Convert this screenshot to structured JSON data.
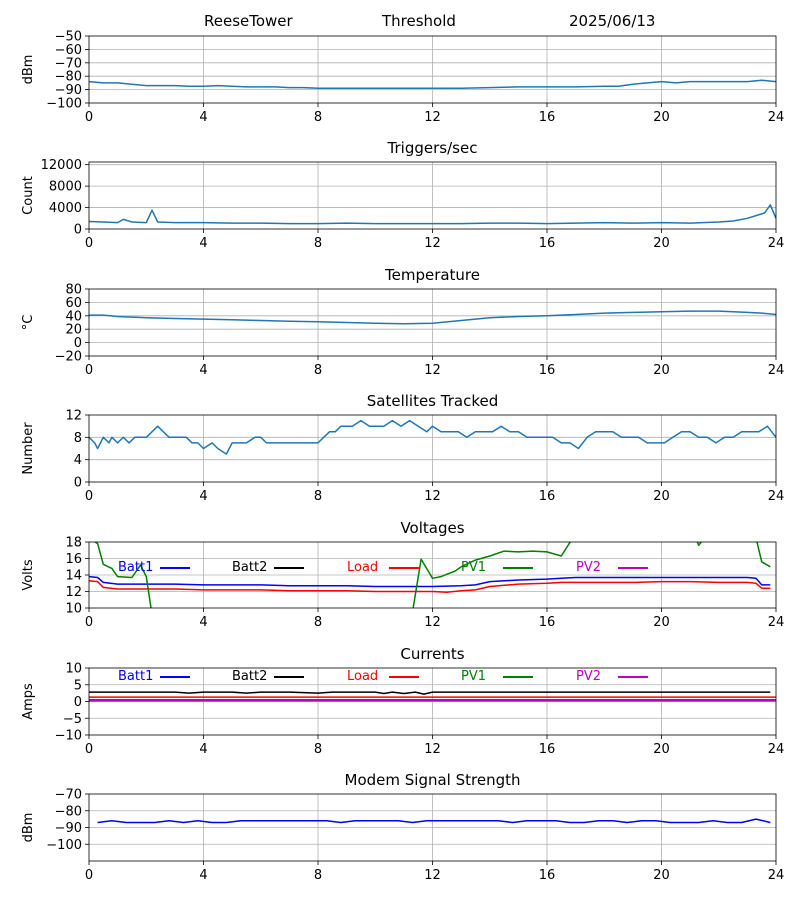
{
  "header": {
    "station": "ReeseTower",
    "mode": "Threshold",
    "date": "2025/06/13"
  },
  "legend_labels": {
    "batt1": "Batt1",
    "batt2": "Batt2",
    "load": "Load",
    "pv1": "PV1",
    "pv2": "PV2"
  },
  "chart_data": [
    {
      "type": "line",
      "title": "",
      "ylabel": "dBm",
      "xlim": [
        0,
        24
      ],
      "ylim": [
        -100,
        -50
      ],
      "x_ticks": [
        "0",
        "4",
        "8",
        "12",
        "16",
        "20",
        "24"
      ],
      "y_ticks": [
        "−100",
        "−90",
        "−80",
        "−70",
        "−60",
        "−50"
      ],
      "y_tick_values": [
        -100,
        -90,
        -80,
        -70,
        -60,
        -50
      ],
      "grid": true,
      "series": [
        {
          "color": "#1f77b4",
          "x": [
            0,
            0.5,
            1,
            1.5,
            2,
            2.5,
            3,
            3.5,
            4,
            4.5,
            5,
            5.5,
            6,
            6.5,
            7,
            7.5,
            8,
            9,
            10,
            11,
            12,
            13,
            14,
            15,
            16,
            17,
            18,
            18.5,
            19,
            19.5,
            20,
            20.5,
            21,
            21.5,
            22,
            22.5,
            23,
            23.5,
            24
          ],
          "y": [
            -84,
            -85,
            -85,
            -86,
            -87,
            -87,
            -87,
            -87.5,
            -87.5,
            -87,
            -87.5,
            -88,
            -88,
            -88,
            -88.5,
            -88.5,
            -89,
            -89,
            -89,
            -89,
            -89,
            -89,
            -88.5,
            -88,
            -88,
            -88,
            -87.5,
            -87.5,
            -86,
            -85,
            -84,
            -85,
            -84,
            -84,
            -84,
            -84,
            -84,
            -83,
            -84
          ]
        }
      ]
    },
    {
      "type": "line",
      "title": "Triggers/sec",
      "ylabel": "Count",
      "xlim": [
        0,
        24
      ],
      "ylim": [
        0,
        12500
      ],
      "x_ticks": [
        "0",
        "4",
        "8",
        "12",
        "16",
        "20",
        "24"
      ],
      "y_ticks": [
        "0",
        "4000",
        "8000",
        "12000"
      ],
      "y_tick_values": [
        0,
        4000,
        8000,
        12000
      ],
      "grid": true,
      "series": [
        {
          "color": "#1f77b4",
          "x": [
            0,
            0.5,
            1,
            1.2,
            1.5,
            2,
            2.2,
            2.4,
            3,
            4,
            5,
            6,
            7,
            8,
            9,
            10,
            11,
            12,
            13,
            14,
            15,
            16,
            17,
            18,
            19,
            20,
            21,
            22,
            22.5,
            23,
            23.3,
            23.6,
            23.8,
            24
          ],
          "y": [
            1400,
            1300,
            1200,
            1800,
            1300,
            1200,
            3500,
            1300,
            1200,
            1200,
            1100,
            1100,
            1000,
            1000,
            1100,
            1000,
            1000,
            1000,
            1000,
            1100,
            1100,
            1000,
            1100,
            1200,
            1100,
            1200,
            1100,
            1300,
            1500,
            2000,
            2500,
            3000,
            4500,
            2000
          ]
        }
      ]
    },
    {
      "type": "line",
      "title": "Temperature",
      "ylabel": "°C",
      "xlim": [
        0,
        24
      ],
      "ylim": [
        -20,
        80
      ],
      "x_ticks": [
        "0",
        "4",
        "8",
        "12",
        "16",
        "20",
        "24"
      ],
      "y_ticks": [
        "−20",
        "0",
        "20",
        "40",
        "60",
        "80"
      ],
      "y_tick_values": [
        -20,
        0,
        20,
        40,
        60,
        80
      ],
      "grid": true,
      "series": [
        {
          "color": "#1f77b4",
          "x": [
            0,
            0.5,
            1,
            2,
            3,
            4,
            5,
            6,
            7,
            8,
            9,
            10,
            11,
            12,
            13,
            14,
            15,
            16,
            17,
            18,
            19,
            20,
            21,
            22,
            23,
            23.5,
            24
          ],
          "y": [
            41,
            41,
            39,
            37,
            36,
            35,
            34,
            33,
            32,
            31,
            30,
            29,
            28,
            29,
            33,
            37,
            39,
            40,
            42,
            44,
            45,
            46,
            47,
            47,
            45,
            44,
            42
          ]
        }
      ]
    },
    {
      "type": "line",
      "title": "Satellites Tracked",
      "ylabel": "Number",
      "xlim": [
        0,
        24
      ],
      "ylim": [
        0,
        12
      ],
      "x_ticks": [
        "0",
        "4",
        "8",
        "12",
        "16",
        "20",
        "24"
      ],
      "y_ticks": [
        "0",
        "4",
        "8",
        "12"
      ],
      "y_tick_values": [
        0,
        4,
        8,
        12
      ],
      "grid": true,
      "series": [
        {
          "color": "#1f77b4",
          "x": [
            0,
            0.2,
            0.3,
            0.4,
            0.5,
            0.7,
            0.8,
            1.0,
            1.2,
            1.4,
            1.6,
            1.8,
            2.0,
            2.2,
            2.4,
            2.6,
            2.8,
            3.0,
            3.2,
            3.4,
            3.6,
            3.8,
            4.0,
            4.3,
            4.5,
            4.8,
            5.0,
            5.3,
            5.5,
            5.8,
            6.0,
            6.2,
            6.5,
            6.8,
            7.0,
            7.3,
            7.5,
            7.8,
            8.0,
            8.2,
            8.4,
            8.6,
            8.8,
            9.0,
            9.2,
            9.5,
            9.8,
            10.0,
            10.3,
            10.6,
            10.9,
            11.2,
            11.5,
            11.8,
            12.0,
            12.3,
            12.6,
            12.9,
            13.2,
            13.5,
            13.8,
            14.1,
            14.4,
            14.7,
            15.0,
            15.3,
            15.6,
            15.9,
            16.2,
            16.5,
            16.8,
            17.1,
            17.4,
            17.7,
            18.0,
            18.3,
            18.6,
            18.9,
            19.2,
            19.5,
            19.8,
            20.1,
            20.4,
            20.7,
            21.0,
            21.3,
            21.6,
            21.9,
            22.2,
            22.5,
            22.8,
            23.1,
            23.4,
            23.7,
            24.0
          ],
          "y": [
            8,
            7,
            6,
            7,
            8,
            7,
            8,
            7,
            8,
            7,
            8,
            8,
            8,
            9,
            10,
            9,
            8,
            8,
            8,
            8,
            7,
            7,
            6,
            7,
            6,
            5,
            7,
            7,
            7,
            8,
            8,
            7,
            7,
            7,
            7,
            7,
            7,
            7,
            7,
            8,
            9,
            9,
            10,
            10,
            10,
            11,
            10,
            10,
            10,
            11,
            10,
            11,
            10,
            9,
            10,
            9,
            9,
            9,
            8,
            9,
            9,
            9,
            10,
            9,
            9,
            8,
            8,
            8,
            8,
            7,
            7,
            6,
            8,
            9,
            9,
            9,
            8,
            8,
            8,
            7,
            7,
            7,
            8,
            9,
            9,
            8,
            8,
            7,
            8,
            8,
            9,
            9,
            9,
            10,
            8
          ]
        }
      ]
    },
    {
      "type": "line",
      "title": "Voltages",
      "ylabel": "Volts",
      "xlim": [
        0,
        24
      ],
      "ylim": [
        10,
        18
      ],
      "x_ticks": [
        "0",
        "4",
        "8",
        "12",
        "16",
        "20",
        "24"
      ],
      "y_ticks": [
        "10",
        "12",
        "14",
        "16",
        "18"
      ],
      "y_tick_values": [
        10,
        12,
        14,
        16,
        18
      ],
      "grid": true,
      "legend": "top-left, inline",
      "series": [
        {
          "name": "Batt1",
          "color": "#0000ff",
          "x": [
            0,
            0.3,
            0.5,
            1,
            2,
            3,
            4,
            5,
            6,
            7,
            8,
            9,
            10,
            11,
            12,
            13,
            13.5,
            14,
            15,
            16,
            16.5,
            17,
            18,
            19,
            20,
            21,
            22,
            23,
            23.3,
            23.5,
            23.8
          ],
          "y": [
            13.8,
            13.7,
            13.1,
            12.9,
            12.9,
            12.9,
            12.8,
            12.8,
            12.8,
            12.7,
            12.7,
            12.7,
            12.6,
            12.6,
            12.6,
            12.7,
            12.8,
            13.2,
            13.4,
            13.5,
            13.6,
            13.7,
            13.7,
            13.7,
            13.7,
            13.7,
            13.7,
            13.7,
            13.6,
            12.8,
            12.8
          ]
        },
        {
          "name": "Batt2",
          "color": "#000000",
          "x": [],
          "y": []
        },
        {
          "name": "Load",
          "color": "#ff0000",
          "x": [
            0,
            0.3,
            0.5,
            1,
            2,
            3,
            4,
            5,
            6,
            7,
            8,
            9,
            10,
            11,
            12,
            12.5,
            13,
            13.5,
            14,
            15,
            16,
            16.5,
            17,
            18,
            19,
            20,
            21,
            22,
            23,
            23.3,
            23.5,
            23.8
          ],
          "y": [
            13.3,
            13.2,
            12.5,
            12.3,
            12.3,
            12.3,
            12.2,
            12.2,
            12.2,
            12.1,
            12.1,
            12.1,
            12.0,
            12.0,
            12.0,
            11.9,
            12.1,
            12.2,
            12.6,
            12.9,
            13.0,
            13.1,
            13.1,
            13.1,
            13.1,
            13.2,
            13.2,
            13.1,
            13.1,
            13.0,
            12.4,
            12.4
          ]
        },
        {
          "name": "PV1",
          "color": "#008000",
          "x": [
            0,
            0.3,
            0.5,
            0.8,
            1.0,
            1.5,
            1.8,
            2.0,
            2.2,
            10.8,
            11.3,
            11.6,
            12.0,
            12.3,
            12.8,
            13.0,
            13.5,
            14.0,
            14.5,
            15.0,
            15.5,
            16.0,
            16.5,
            16.9,
            21.2,
            21.3,
            21.5,
            23.3,
            23.5,
            23.8
          ],
          "y": [
            18.5,
            17.8,
            15.3,
            14.8,
            13.8,
            13.7,
            15.2,
            13.8,
            9.2,
            9.2,
            9.5,
            15.9,
            13.6,
            13.8,
            14.5,
            15.0,
            15.8,
            16.3,
            16.9,
            16.8,
            16.9,
            16.8,
            16.3,
            18.5,
            18.5,
            17.6,
            18.5,
            18.5,
            15.6,
            15.0
          ]
        },
        {
          "name": "PV2",
          "color": "#bf00bf",
          "x": [],
          "y": []
        }
      ]
    },
    {
      "type": "line",
      "title": "Currents",
      "ylabel": "Amps",
      "xlim": [
        0,
        24
      ],
      "ylim": [
        -10,
        10
      ],
      "x_ticks": [
        "0",
        "4",
        "8",
        "12",
        "16",
        "20",
        "24"
      ],
      "y_ticks": [
        "−10",
        "−5",
        "0",
        "5",
        "10"
      ],
      "y_tick_values": [
        -10,
        -5,
        0,
        5,
        10
      ],
      "grid": true,
      "legend": "top-left, inline",
      "series": [
        {
          "name": "Batt1",
          "color": "#0000ff",
          "x": [
            0,
            4,
            8,
            12,
            16,
            20,
            24
          ],
          "y": [
            0.2,
            0.2,
            0.2,
            0.2,
            0.2,
            0.2,
            0.2
          ]
        },
        {
          "name": "Batt2",
          "color": "#000000",
          "x": [
            0,
            1,
            2,
            3,
            3.5,
            4,
            5,
            5.5,
            6,
            7,
            8,
            8.5,
            9,
            10,
            10.3,
            10.6,
            11,
            11.4,
            11.7,
            12,
            13,
            14,
            15,
            16,
            17,
            18,
            19,
            20,
            21,
            22,
            23,
            23.8
          ],
          "y": [
            2.8,
            2.8,
            2.8,
            2.8,
            2.5,
            2.8,
            2.8,
            2.5,
            2.8,
            2.8,
            2.5,
            2.8,
            2.8,
            2.8,
            2.4,
            2.8,
            2.4,
            2.8,
            2.2,
            2.8,
            2.8,
            2.8,
            2.8,
            2.8,
            2.8,
            2.8,
            2.8,
            2.8,
            2.8,
            2.8,
            2.8,
            2.8
          ]
        },
        {
          "name": "Load",
          "color": "#ff0000",
          "x": [
            0,
            4,
            8,
            12,
            16,
            20,
            24
          ],
          "y": [
            1.3,
            1.3,
            1.3,
            1.3,
            1.3,
            1.3,
            1.3
          ]
        },
        {
          "name": "PV1",
          "color": "#008000",
          "x": [
            0,
            24
          ],
          "y": [
            0.5,
            0.5
          ]
        },
        {
          "name": "PV2",
          "color": "#bf00bf",
          "x": [
            0,
            24
          ],
          "y": [
            0.3,
            0.3
          ]
        }
      ]
    },
    {
      "type": "line",
      "title": "Modem Signal Strength",
      "ylabel": "dBm",
      "xlim": [
        0,
        24
      ],
      "ylim": [
        -110,
        -70
      ],
      "x_ticks": [
        "0",
        "4",
        "8",
        "12",
        "16",
        "20",
        "24"
      ],
      "y_ticks": [
        "−100",
        "−90",
        "−80",
        "−70"
      ],
      "y_tick_values": [
        -100,
        -90,
        -80,
        -70
      ],
      "grid": true,
      "series": [
        {
          "color": "#0000ff",
          "x": [
            0.3,
            0.8,
            1.3,
            1.8,
            2.3,
            2.8,
            3.3,
            3.8,
            4.3,
            4.8,
            5.3,
            5.8,
            6.3,
            6.8,
            7.3,
            7.8,
            8.3,
            8.8,
            9.3,
            9.8,
            10.3,
            10.8,
            11.3,
            11.8,
            12.3,
            12.8,
            13.3,
            13.8,
            14.3,
            14.8,
            15.3,
            15.8,
            16.3,
            16.8,
            17.3,
            17.8,
            18.3,
            18.8,
            19.3,
            19.8,
            20.3,
            20.8,
            21.3,
            21.8,
            22.3,
            22.8,
            23.3,
            23.8
          ],
          "y": [
            -87,
            -86,
            -87,
            -87,
            -87,
            -86,
            -87,
            -86,
            -87,
            -87,
            -86,
            -86,
            -86,
            -86,
            -86,
            -86,
            -86,
            -87,
            -86,
            -86,
            -86,
            -86,
            -87,
            -86,
            -86,
            -86,
            -86,
            -86,
            -86,
            -87,
            -86,
            -86,
            -86,
            -87,
            -87,
            -86,
            -86,
            -87,
            -86,
            -86,
            -87,
            -87,
            -87,
            -86,
            -87,
            -87,
            -85,
            -87
          ]
        }
      ]
    }
  ]
}
